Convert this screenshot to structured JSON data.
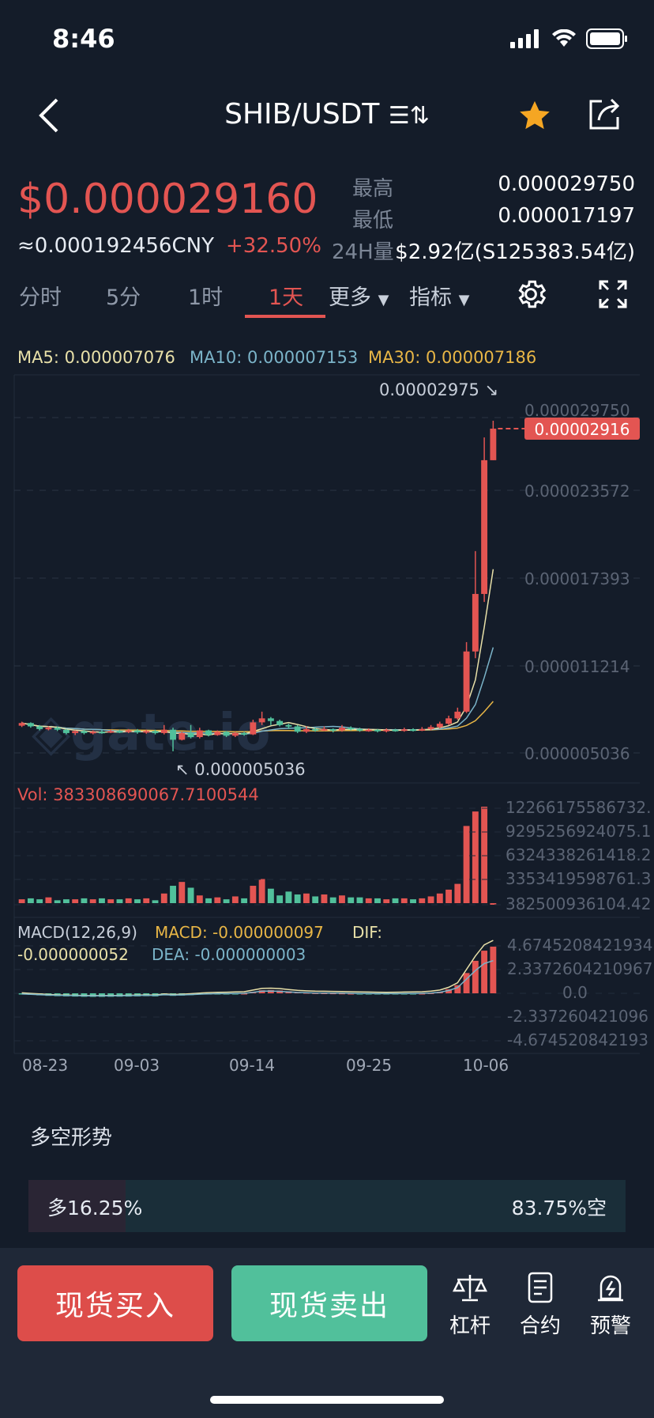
{
  "status": {
    "time": "8:46"
  },
  "header": {
    "pair": "SHIB/USDT",
    "swap_glyph": "☰⇅"
  },
  "ticker": {
    "price": "$0.000029160",
    "cny": "≈0.000192456CNY",
    "change": "+32.50%",
    "high_label": "最高",
    "high": "0.000029750",
    "low_label": "最低",
    "low": "0.000017197",
    "vol_label": "24H量",
    "vol": "$2.92亿(S125383.54亿)"
  },
  "tabs": [
    {
      "label": "分时"
    },
    {
      "label": "5分"
    },
    {
      "label": "1时"
    },
    {
      "label": "1天"
    },
    {
      "label": "更多"
    },
    {
      "label": "指标"
    }
  ],
  "active_tab": "1天",
  "ma": {
    "ma5": "MA5: 0.000007076",
    "ma10": "MA10: 0.000007153",
    "ma30": "MA30: 0.000007186"
  },
  "colors": {
    "up": "#e35552",
    "down": "#51c09b",
    "ma5": "#e8e0a8",
    "ma10": "#7bb4c9",
    "ma30": "#e8b646",
    "bg": "#141c29"
  },
  "chart_data": {
    "type": "candlestick",
    "price_axis": [
      "0.000029750",
      "0.000023572",
      "0.000017393",
      "0.000011214",
      "0.000005036"
    ],
    "high_marker": "0.00002975",
    "low_marker": "0.000005036",
    "current_price_tag": "0.00002916",
    "dates": [
      "08-23",
      "09-03",
      "09-14",
      "09-25",
      "10-06"
    ],
    "price_series": [
      [
        6.95e-06,
        7.15e-06,
        7.25e-06,
        6.85e-06
      ],
      [
        7.15e-06,
        6.9e-06,
        7.2e-06,
        6.8e-06
      ],
      [
        6.9e-06,
        6.7e-06,
        7e-06,
        6.6e-06
      ],
      [
        6.7e-06,
        6.8e-06,
        6.9e-06,
        6.6e-06
      ],
      [
        6.8e-06,
        6.65e-06,
        6.9e-06,
        6.55e-06
      ],
      [
        6.65e-06,
        6.4e-06,
        6.7e-06,
        6.3e-06
      ],
      [
        6.4e-06,
        6.55e-06,
        6.6e-06,
        6.25e-06
      ],
      [
        6.55e-06,
        6.4e-06,
        6.65e-06,
        6.3e-06
      ],
      [
        6.4e-06,
        6.5e-06,
        6.6e-06,
        6.3e-06
      ],
      [
        6.5e-06,
        6.45e-06,
        6.6e-06,
        6.35e-06
      ],
      [
        6.45e-06,
        6.55e-06,
        6.65e-06,
        6.4e-06
      ],
      [
        6.55e-06,
        6.5e-06,
        6.65e-06,
        6.4e-06
      ],
      [
        6.5e-06,
        6.6e-06,
        6.7e-06,
        6.4e-06
      ],
      [
        6.6e-06,
        6.45e-06,
        6.7e-06,
        6.35e-06
      ],
      [
        6.45e-06,
        6.55e-06,
        6.65e-06,
        6.35e-06
      ],
      [
        6.55e-06,
        6.4e-06,
        6.65e-06,
        6.3e-06
      ],
      [
        6.4e-06,
        6.65e-06,
        7e-06,
        6.3e-06
      ],
      [
        6.65e-06,
        5.9e-06,
        6.8e-06,
        5.04e-06
      ],
      [
        5.9e-06,
        6.4e-06,
        6.5e-06,
        5.85e-06
      ],
      [
        6.4e-06,
        6.1e-06,
        7e-06,
        6e-06
      ],
      [
        6.1e-06,
        6.6e-06,
        6.8e-06,
        6e-06
      ],
      [
        6.6e-06,
        6.25e-06,
        6.65e-06,
        6.15e-06
      ],
      [
        6.25e-06,
        6.5e-06,
        6.6e-06,
        6.2e-06
      ],
      [
        6.5e-06,
        6.2e-06,
        6.55e-06,
        6.1e-06
      ],
      [
        6.2e-06,
        6.4e-06,
        6.5e-06,
        6.1e-06
      ],
      [
        6.4e-06,
        6.3e-06,
        6.5e-06,
        6.2e-06
      ],
      [
        6.3e-06,
        7.2e-06,
        7.4e-06,
        6.25e-06
      ],
      [
        7.2e-06,
        7.5e-06,
        8e-06,
        7e-06
      ],
      [
        7.5e-06,
        7.3e-06,
        7.6e-06,
        7e-06
      ],
      [
        7.3e-06,
        7e-06,
        7.4e-06,
        6.9e-06
      ],
      [
        7e-06,
        6.9e-06,
        7.1e-06,
        6.7e-06
      ],
      [
        6.9e-06,
        6.5e-06,
        7e-06,
        6.4e-06
      ],
      [
        6.5e-06,
        6.7e-06,
        6.9e-06,
        6.4e-06
      ],
      [
        6.7e-06,
        6.6e-06,
        6.8e-06,
        6.5e-06
      ],
      [
        6.6e-06,
        6.7e-06,
        6.9e-06,
        6.55e-06
      ],
      [
        6.7e-06,
        6.6e-06,
        6.75e-06,
        6.45e-06
      ],
      [
        6.6e-06,
        6.8e-06,
        7e-06,
        6.5e-06
      ],
      [
        6.8e-06,
        6.7e-06,
        6.9e-06,
        6.6e-06
      ],
      [
        6.7e-06,
        6.6e-06,
        6.8e-06,
        6.5e-06
      ],
      [
        6.6e-06,
        6.65e-06,
        6.75e-06,
        6.5e-06
      ],
      [
        6.65e-06,
        6.55e-06,
        6.7e-06,
        6.45e-06
      ],
      [
        6.55e-06,
        6.65e-06,
        6.75e-06,
        6.45e-06
      ],
      [
        6.65e-06,
        6.6e-06,
        6.72e-06,
        6.5e-06
      ],
      [
        6.6e-06,
        6.68e-06,
        6.8e-06,
        6.5e-06
      ],
      [
        6.68e-06,
        6.62e-06,
        6.76e-06,
        6.52e-06
      ],
      [
        6.62e-06,
        6.7e-06,
        6.85e-06,
        6.55e-06
      ],
      [
        6.7e-06,
        6.85e-06,
        7e-06,
        6.6e-06
      ],
      [
        6.85e-06,
        7.1e-06,
        7.25e-06,
        6.75e-06
      ],
      [
        7.1e-06,
        7.5e-06,
        7.7e-06,
        7e-06
      ],
      [
        7.5e-06,
        8e-06,
        8.3e-06,
        7.4e-06
      ],
      [
        8e-06,
        1.25e-05,
        1.32e-05,
        7.9e-06
      ],
      [
        1.25e-05,
        1.68e-05,
        2e-05,
        1.2e-05
      ],
      [
        1.68e-05,
        2.68e-05,
        2.85e-05,
        1.62e-05
      ],
      [
        2.68e-05,
        2.916e-05,
        2.975e-05,
        2.68e-05
      ]
    ],
    "volume_label": "Vol: 383308690067.7100544",
    "volume_axis": [
      "12266175586732.",
      "9295256924075.1",
      "6324338261418.2",
      "3353419598761.3",
      "382500936104.42"
    ],
    "volume_series": [
      4,
      5,
      4,
      6,
      3,
      4,
      4,
      5,
      4,
      5,
      4,
      4,
      5,
      4,
      5,
      3,
      10,
      18,
      22,
      16,
      8,
      5,
      6,
      4,
      7,
      5,
      18,
      25,
      15,
      8,
      12,
      9,
      10,
      7,
      9,
      6,
      8,
      6,
      6,
      5,
      5,
      4,
      5,
      5,
      4,
      5,
      7,
      10,
      14,
      20,
      80,
      95,
      100,
      0
    ],
    "macd_label": "MACD(12,26,9)",
    "macd_value": "MACD: -0.000000097",
    "dif": "DIF: -0.000000052",
    "dea": "DEA: -0.000000003",
    "macd_axis": [
      "4.6745208421934",
      "2.3372604210967",
      "0.0",
      "-2.337260421096",
      "-4.674520842193"
    ],
    "macd_series": [
      -0.1,
      -0.15,
      -0.2,
      -0.25,
      -0.28,
      -0.3,
      -0.32,
      -0.34,
      -0.35,
      -0.35,
      -0.34,
      -0.33,
      -0.32,
      -0.3,
      -0.28,
      -0.3,
      -0.2,
      -0.25,
      -0.22,
      -0.18,
      -0.12,
      -0.08,
      -0.05,
      -0.04,
      -0.02,
      0,
      0.15,
      0.3,
      0.32,
      0.28,
      0.2,
      0.12,
      0.08,
      0.05,
      0.04,
      0.03,
      0.02,
      0,
      -0.02,
      -0.03,
      -0.04,
      -0.05,
      -0.04,
      -0.03,
      -0.02,
      0,
      0.05,
      0.15,
      0.4,
      0.8,
      2.0,
      3.2,
      4.2,
      4.6
    ]
  },
  "long_short": {
    "title": "多空形势",
    "long": "多16.25%",
    "short": "83.75%空",
    "long_pct": 16.25
  },
  "bottom": {
    "buy": "现货买入",
    "sell": "现货卖出",
    "leverage": "杠杆",
    "contract": "合约",
    "alert": "预警"
  }
}
